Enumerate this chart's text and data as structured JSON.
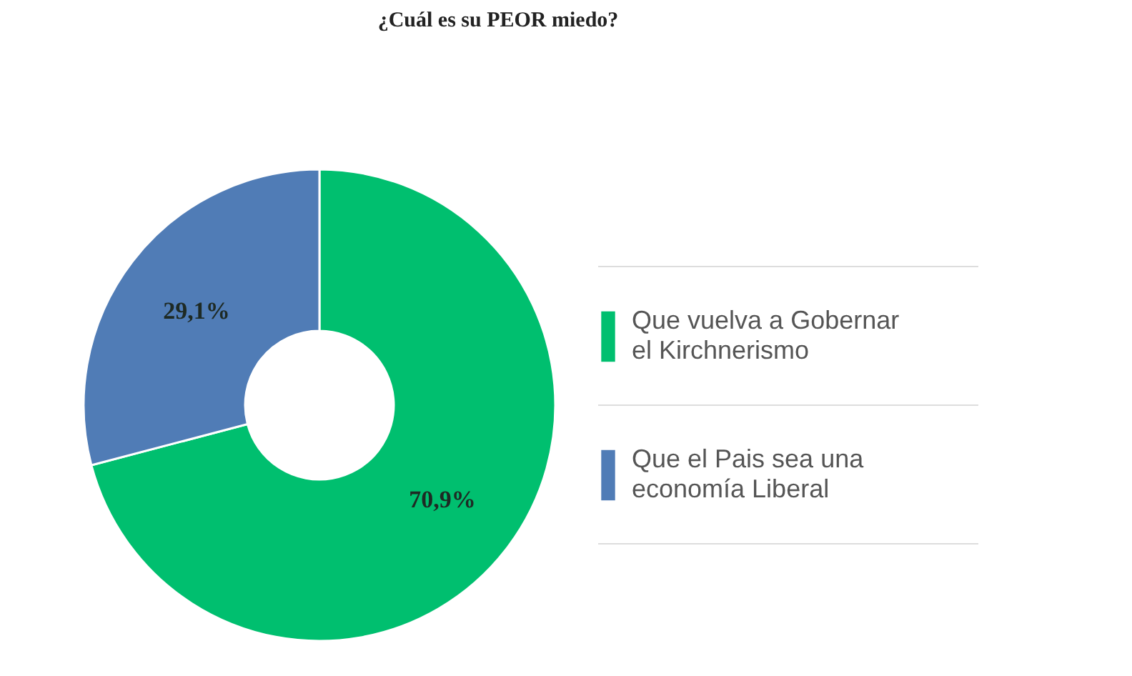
{
  "chart_data": {
    "type": "donut",
    "title": "¿Cuál es su PEOR miedo?",
    "categories": [
      "Que vuelva a Gobernar el Kirchnerismo",
      "Que el Pais sea una economía Liberal"
    ],
    "values": [
      70.9,
      29.1
    ],
    "colors": [
      "#00bf6f",
      "#507cb6"
    ],
    "value_labels": [
      "70,9%",
      "29,1%"
    ],
    "legend": "right"
  }
}
